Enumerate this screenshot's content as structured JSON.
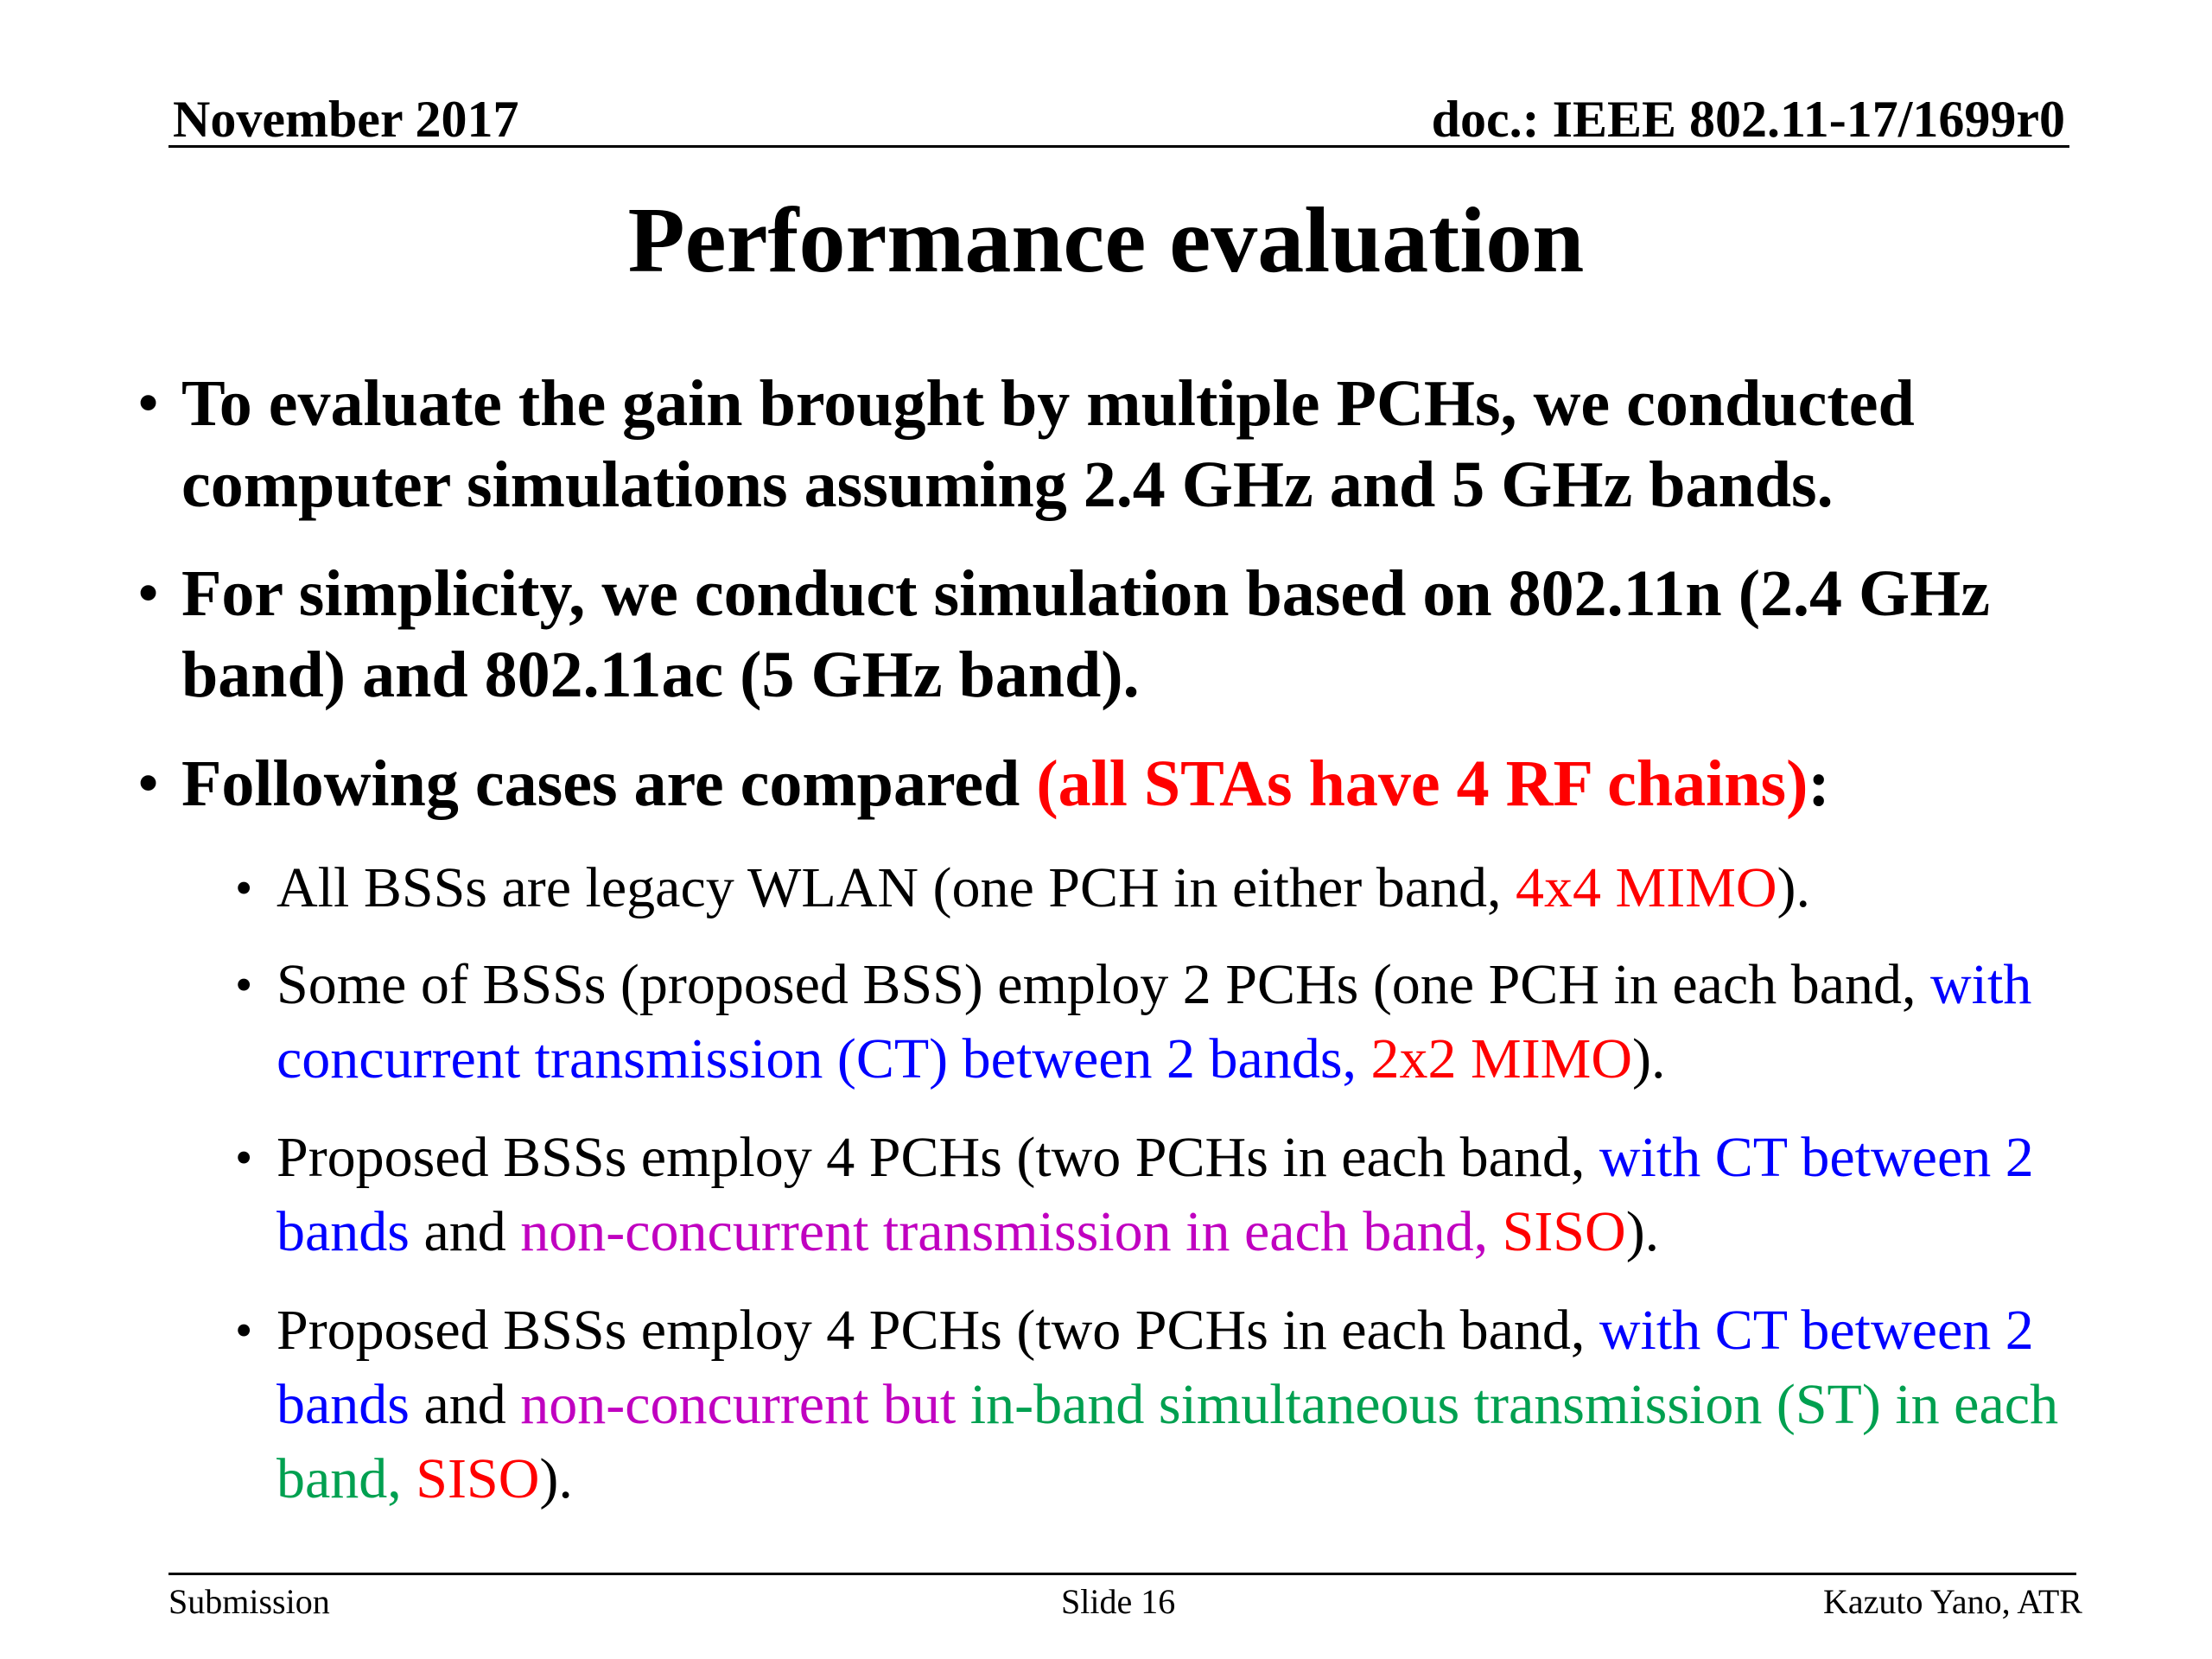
{
  "header": {
    "date": "November 2017",
    "doc": "doc.: IEEE 802.11-17/1699r0"
  },
  "title": "Performance evaluation",
  "bullets": {
    "b1": {
      "dot": "•",
      "text": "To evaluate the gain brought by multiple PCHs, we conducted computer simulations assuming 2.4 GHz and 5 GHz bands."
    },
    "b2": {
      "dot": "•",
      "text": "For simplicity, we conduct simulation based on 802.11n (2.4 GHz band) and 802.11ac (5 GHz band)."
    },
    "b3": {
      "dot": "•",
      "t1": "Following cases are compared ",
      "t2": "(all STAs have 4 RF chains)",
      "t3": ":"
    },
    "s1": {
      "dot": "•",
      "t1": "All BSSs are legacy WLAN (one PCH in either band, ",
      "t2": "4x4 MIMO",
      "t3": ")."
    },
    "s2": {
      "dot": "•",
      "t1": "Some of BSSs (proposed BSS) employ 2 PCHs (one PCH in each band, ",
      "t2": "with concurrent transmission (CT) between 2 bands, ",
      "t3": "2x2 MIMO",
      "t4": ")."
    },
    "s3": {
      "dot": "•",
      "t1": "Proposed BSSs employ 4 PCHs (two PCHs in each band, ",
      "t2": "with CT between 2 bands",
      "t3": " and ",
      "t4": "non-concurrent transmission in each band, ",
      "t5": "SISO",
      "t6": ")."
    },
    "s4": {
      "dot": "•",
      "t1": "Proposed BSSs employ 4 PCHs (two PCHs in each band, ",
      "t2": "with CT between 2 bands",
      "t3": " and ",
      "t4": "non-concurrent but ",
      "t5": "in-band simultaneous transmission (ST) in each band, ",
      "t6": "SISO",
      "t7": ")."
    }
  },
  "footer": {
    "left": "Submission",
    "center": "Slide 16",
    "right": "Kazuto Yano, ATR"
  },
  "colors": {
    "red": "#ff0000",
    "blue": "#0000ff",
    "magenta": "#c000c0",
    "green": "#00a050"
  }
}
